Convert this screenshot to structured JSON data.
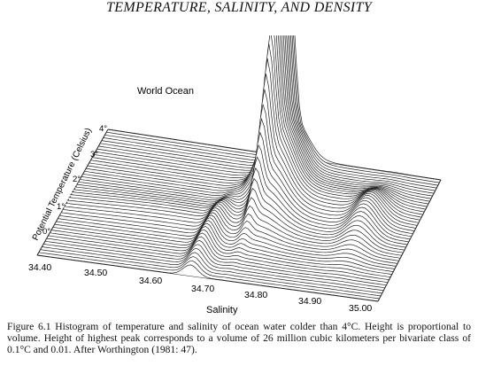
{
  "header": {
    "running_title": "TEMPERATURE, SALINITY, AND DENSITY"
  },
  "figure": {
    "panel_label": "World Ocean",
    "y_axis_label": "Potential Temperature (Celsius)",
    "x_axis_label": "Salinity",
    "y_ticks": [
      "4°",
      "3°",
      "2°",
      "1°",
      "0°"
    ],
    "x_ticks": [
      "34.40",
      "34.50",
      "34.60",
      "34.70",
      "34.80",
      "34.90",
      "35.00"
    ]
  },
  "caption": {
    "text": "Figure 6.1 Histogram of temperature and salinity of ocean water colder than 4°C. Height is proportional to volume. Height of highest peak corresponds to a volume of 26 million cubic kilometers per bivariate class of 0.1°C and 0.01. After Worthington (1981: 47)."
  }
}
